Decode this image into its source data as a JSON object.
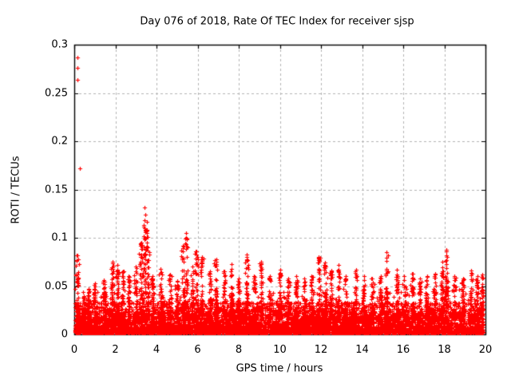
{
  "chart_data": {
    "type": "scatter",
    "title": "Day 076 of 2018, Rate Of TEC Index for receiver sjsp",
    "xlabel": "GPS time / hours",
    "ylabel": "ROTI / TECUs",
    "xlim": [
      0,
      20
    ],
    "ylim": [
      0,
      0.3
    ],
    "xtick_values": [
      0,
      2,
      4,
      6,
      8,
      10,
      12,
      14,
      16,
      18,
      20
    ],
    "xtick_labels": [
      "0",
      "2",
      "4",
      "6",
      "8",
      "10",
      "12",
      "14",
      "16",
      "18",
      "20"
    ],
    "ytick_values": [
      0,
      0.05,
      0.1,
      0.15,
      0.2,
      0.25,
      0.3
    ],
    "ytick_labels": [
      "0",
      "0.05",
      "0.1",
      "0.15",
      "0.2",
      "0.25",
      "0.3"
    ],
    "grid": true,
    "grid_style": "dashed",
    "legend": "none",
    "marker": "+",
    "colors": {
      "points": "#ff0000",
      "grid": "#b4b4b4",
      "axis": "#000000",
      "background": "#ffffff",
      "text": "#000000"
    },
    "baseline_band": {
      "description": "dense quasi-continuous noise band of ROTI values across all hours",
      "x_range": [
        0.02,
        19.9
      ],
      "y_min": 0.0015,
      "y_max": 0.032,
      "point_count": 6500
    },
    "mid_scatter": {
      "description": "sparser scatter of moderate ROTI values above the dense band",
      "y_min": 0.002,
      "y_max": 0.048,
      "point_count": 900
    },
    "spikes": [
      [
        0.15,
        0.082
      ],
      [
        0.45,
        0.04
      ],
      [
        0.7,
        0.047
      ],
      [
        1.0,
        0.053
      ],
      [
        1.45,
        0.056
      ],
      [
        1.85,
        0.075
      ],
      [
        2.1,
        0.072
      ],
      [
        2.35,
        0.065
      ],
      [
        2.65,
        0.06
      ],
      [
        3.0,
        0.07
      ],
      [
        3.25,
        0.095
      ],
      [
        3.42,
        0.118
      ],
      [
        3.55,
        0.108
      ],
      [
        3.8,
        0.06
      ],
      [
        4.2,
        0.068
      ],
      [
        4.65,
        0.062
      ],
      [
        5.0,
        0.055
      ],
      [
        5.3,
        0.092
      ],
      [
        5.45,
        0.1
      ],
      [
        5.75,
        0.07
      ],
      [
        5.95,
        0.086
      ],
      [
        6.2,
        0.08
      ],
      [
        6.6,
        0.065
      ],
      [
        6.9,
        0.078
      ],
      [
        7.3,
        0.065
      ],
      [
        7.65,
        0.073
      ],
      [
        8.0,
        0.058
      ],
      [
        8.4,
        0.083
      ],
      [
        8.75,
        0.06
      ],
      [
        9.1,
        0.075
      ],
      [
        9.5,
        0.06
      ],
      [
        10.0,
        0.067
      ],
      [
        10.4,
        0.058
      ],
      [
        10.8,
        0.06
      ],
      [
        11.2,
        0.058
      ],
      [
        11.55,
        0.06
      ],
      [
        11.9,
        0.08
      ],
      [
        12.2,
        0.074
      ],
      [
        12.5,
        0.066
      ],
      [
        12.85,
        0.072
      ],
      [
        13.2,
        0.06
      ],
      [
        13.7,
        0.067
      ],
      [
        14.1,
        0.06
      ],
      [
        14.5,
        0.058
      ],
      [
        14.9,
        0.06
      ],
      [
        15.2,
        0.085
      ],
      [
        15.7,
        0.067
      ],
      [
        16.05,
        0.06
      ],
      [
        16.45,
        0.063
      ],
      [
        16.8,
        0.058
      ],
      [
        17.15,
        0.06
      ],
      [
        17.55,
        0.063
      ],
      [
        17.9,
        0.075
      ],
      [
        18.1,
        0.086
      ],
      [
        18.5,
        0.06
      ],
      [
        18.9,
        0.058
      ],
      [
        19.3,
        0.066
      ],
      [
        19.6,
        0.06
      ],
      [
        19.85,
        0.062
      ]
    ],
    "outliers": [
      [
        0.16,
        0.287
      ],
      [
        0.16,
        0.276
      ],
      [
        0.17,
        0.264
      ],
      [
        0.27,
        0.172
      ],
      [
        0.13,
        0.082
      ],
      [
        3.4,
        0.131
      ],
      [
        3.46,
        0.124
      ],
      [
        3.36,
        0.113
      ],
      [
        3.52,
        0.105
      ],
      [
        3.44,
        0.099
      ],
      [
        5.44,
        0.105
      ],
      [
        5.48,
        0.099
      ],
      [
        5.4,
        0.094
      ],
      [
        18.1,
        0.088
      ]
    ],
    "seed": 2018076
  }
}
